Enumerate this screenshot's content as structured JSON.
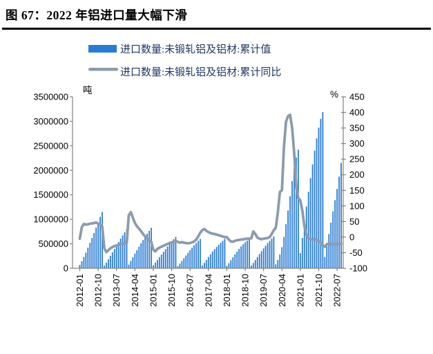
{
  "title": {
    "text": "图 67：2022 年铝进口量大幅下滑"
  },
  "colors": {
    "bar_blue": "#2A7CD2",
    "line_gray": "#8C9BAD",
    "axis_line": "#808080",
    "legend_text": "#1F3864",
    "title_rule": "#000000"
  },
  "legend": [
    {
      "swatch": "bar-swatch",
      "label": "进口数量:未锻轧铝及铝材:累计值"
    },
    {
      "swatch": "line-swatch",
      "label": "进口数量:未锻轧铝及铝材:累计同比"
    }
  ],
  "chart_data": {
    "type": "combo",
    "title": "图 67：2022 年铝进口量大幅下滑",
    "x_start": "2012-01",
    "x_end": "2022-09",
    "x_tick_labels": [
      "2012-01",
      "2012-10",
      "2013-07",
      "2014-04",
      "2015-01",
      "2015-10",
      "2016-07",
      "2017-04",
      "2018-01",
      "2018-10",
      "2019-07",
      "2020-04",
      "2021-01",
      "2021-10",
      "2022-07"
    ],
    "x_tick_step_months": 9,
    "grid": false,
    "legend_position": "top",
    "left_axis": {
      "unit": "吨",
      "min": 0,
      "max": 3500000,
      "tick_step": 500000,
      "tick_labels": [
        "3500000",
        "3000000",
        "2500000",
        "2000000",
        "1500000",
        "1000000",
        "500000",
        "0"
      ]
    },
    "right_axis": {
      "unit": "%",
      "min": -100,
      "max": 450,
      "tick_step": 50,
      "tick_labels": [
        "450",
        "400",
        "350",
        "300",
        "250",
        "200",
        "150",
        "100",
        "50",
        "0",
        "-50",
        "-100"
      ]
    },
    "series": [
      {
        "name": "进口数量:未锻轧铝及铝材:累计值",
        "type": "bar",
        "axis": "left",
        "unit": "吨",
        "values": [
          70000,
          145000,
          230000,
          320000,
          420000,
          520000,
          620000,
          720000,
          830000,
          940000,
          1050000,
          1150000,
          55000,
          115000,
          185000,
          255000,
          325000,
          395000,
          465000,
          535000,
          605000,
          670000,
          735000,
          800000,
          75000,
          150000,
          225000,
          300000,
          370000,
          440000,
          510000,
          575000,
          640000,
          705000,
          765000,
          825000,
          60000,
          115000,
          170000,
          225000,
          280000,
          335000,
          390000,
          445000,
          495000,
          545000,
          595000,
          640000,
          45000,
          95000,
          150000,
          205000,
          260000,
          315000,
          370000,
          420000,
          470000,
          515000,
          560000,
          600000,
          55000,
          110000,
          170000,
          230000,
          285000,
          340000,
          390000,
          435000,
          480000,
          520000,
          560000,
          600000,
          50000,
          105000,
          165000,
          225000,
          285000,
          340000,
          395000,
          445000,
          490000,
          530000,
          565000,
          600000,
          55000,
          110000,
          170000,
          230000,
          290000,
          350000,
          405000,
          460000,
          515000,
          560000,
          605000,
          650000,
          80000,
          170000,
          280000,
          430000,
          640000,
          900000,
          1180000,
          1470000,
          1780000,
          2060000,
          2260000,
          2420000,
          310000,
          620000,
          940000,
          1260000,
          1560000,
          1840000,
          2120000,
          2400000,
          2650000,
          2870000,
          3050000,
          3190000,
          230000,
          450000,
          700000,
          930000,
          1160000,
          1390000,
          1620000,
          1870000,
          2150000
        ]
      },
      {
        "name": "进口数量:未锻轧铝及铝材:累计同比",
        "type": "line",
        "axis": "right",
        "unit": "%",
        "values": [
          -5,
          32,
          42,
          40,
          41,
          43,
          44,
          45,
          47,
          43,
          38,
          34,
          -35,
          -48,
          -42,
          -36,
          -32,
          -29,
          -27,
          -25,
          -23,
          -22,
          -20,
          -19,
          70,
          80,
          62,
          45,
          35,
          27,
          19,
          10,
          2,
          -5,
          -11,
          -15,
          -40,
          -46,
          -38,
          -34,
          -31,
          -28,
          -25,
          -22,
          -19,
          -17,
          -15,
          -13,
          -15,
          -18,
          -16,
          -18,
          -19,
          -20,
          -19,
          -17,
          -14,
          -8,
          2,
          14,
          22,
          26,
          20,
          16,
          13,
          11,
          10,
          8,
          6,
          4,
          2,
          0,
          0,
          -8,
          -14,
          -15,
          -12,
          -10,
          -9,
          -8,
          -7,
          -6,
          -5,
          -5,
          -4,
          18,
          10,
          -2,
          -5,
          -7,
          -5,
          -4,
          -3,
          0,
          10,
          22,
          30,
          80,
          145,
          150,
          290,
          370,
          388,
          392,
          350,
          270,
          160,
          125,
          118,
          85,
          35,
          7,
          -3,
          -6,
          -8,
          -5,
          -9,
          -13,
          -18,
          -26,
          -31,
          -23,
          -21,
          -24,
          -23,
          -22,
          -23,
          -22,
          -21
        ]
      }
    ]
  }
}
